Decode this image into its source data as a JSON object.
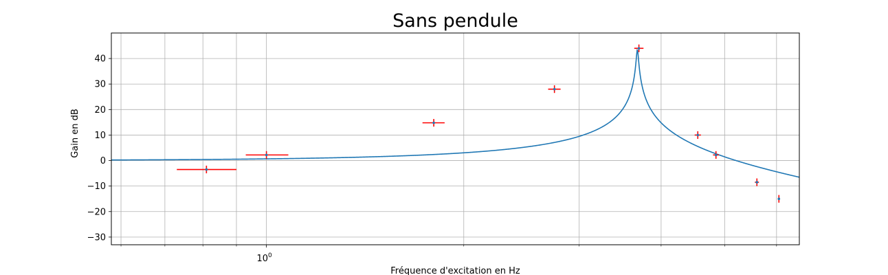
{
  "chart_data": {
    "type": "line",
    "title": "Sans pendule",
    "xlabel": "Fréquence d'excitation en Hz",
    "ylabel": "Gain en dB",
    "xscale": "log",
    "xlim": [
      0.58,
      6.5
    ],
    "ylim": [
      -33,
      50
    ],
    "yticks": [
      -30,
      -20,
      -10,
      0,
      10,
      20,
      30,
      40
    ],
    "ytick_labels": [
      "−30",
      "−20",
      "−10",
      "0",
      "10",
      "20",
      "30",
      "40"
    ],
    "xtick_major": [
      1
    ],
    "xtick_major_base": "10",
    "xtick_major_exp": "0",
    "xtick_minor": [
      0.6,
      0.7,
      0.8,
      0.9,
      2,
      3,
      4,
      5,
      6
    ],
    "grid": true,
    "colors": {
      "model": "#1f77b4",
      "measure": "#ff0000",
      "measure_center": "#1f77b4"
    },
    "model": {
      "f0": 3.68,
      "Q": 150
    },
    "series": [
      {
        "type": "errorbar",
        "points": [
          {
            "x": 0.81,
            "y": -3.5,
            "xerr_lo": 0.08,
            "xerr_hi": 0.09,
            "yerr": 1.5
          },
          {
            "x": 1.0,
            "y": 2.2,
            "xerr_lo": 0.07,
            "xerr_hi": 0.08,
            "yerr": 1.5
          },
          {
            "x": 1.8,
            "y": 14.8,
            "xerr_lo": 0.07,
            "xerr_hi": 0.07,
            "yerr": 1.5
          },
          {
            "x": 2.75,
            "y": 28.0,
            "xerr_lo": 0.06,
            "xerr_hi": 0.06,
            "yerr": 1.5
          },
          {
            "x": 3.7,
            "y": 44.0,
            "xerr_lo": 0.06,
            "xerr_hi": 0.06,
            "yerr": 1.5
          },
          {
            "x": 4.55,
            "y": 10.0,
            "xerr_lo": 0.05,
            "xerr_hi": 0.05,
            "yerr": 1.5
          },
          {
            "x": 4.85,
            "y": 2.2,
            "xerr_lo": 0.05,
            "xerr_hi": 0.05,
            "yerr": 1.5
          },
          {
            "x": 5.6,
            "y": -8.5,
            "xerr_lo": 0.04,
            "xerr_hi": 0.04,
            "yerr": 1.5
          },
          {
            "x": 6.05,
            "y": -15.0,
            "xerr_lo": 0.02,
            "xerr_hi": 0.02,
            "yerr": 1.5
          }
        ]
      }
    ]
  }
}
